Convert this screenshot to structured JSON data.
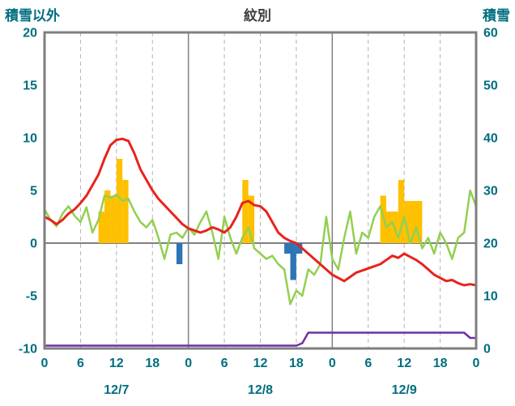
{
  "header": {
    "left_axis_title": "積雪以外",
    "title": "紋別",
    "right_axis_title": "積雪"
  },
  "colors": {
    "axis_text": "#006e7f",
    "title_text": "#404040",
    "frame": "#7f7f7f",
    "grid_major": "#7f7f7f",
    "grid_minor": "#b3b3b3",
    "zero_line": "#7f7f7f",
    "red": "#e8231c",
    "green": "#92d050",
    "orange": "#ffc000",
    "blue": "#2e75b6",
    "purple": "#7030a0",
    "background": "#ffffff"
  },
  "chart_data": {
    "type": "combo (line + bar)",
    "x_unit": "hour",
    "x_range": [
      0,
      72
    ],
    "left_axis": {
      "label": "積雪以外",
      "min": -10,
      "max": 20,
      "ticks": [
        20,
        15,
        10,
        5,
        0,
        -5,
        -10
      ]
    },
    "right_axis": {
      "label": "積雪",
      "min": 0,
      "max": 60,
      "ticks": [
        60,
        50,
        40,
        30,
        20,
        10,
        0
      ]
    },
    "x_ticks": [
      {
        "hour": 0,
        "label": "0"
      },
      {
        "hour": 6,
        "label": "6"
      },
      {
        "hour": 12,
        "label": "12"
      },
      {
        "hour": 18,
        "label": "18"
      },
      {
        "hour": 24,
        "label": "0"
      },
      {
        "hour": 30,
        "label": "6"
      },
      {
        "hour": 36,
        "label": "12"
      },
      {
        "hour": 42,
        "label": "18"
      },
      {
        "hour": 48,
        "label": "0"
      },
      {
        "hour": 54,
        "label": "6"
      },
      {
        "hour": 60,
        "label": "12"
      },
      {
        "hour": 66,
        "label": "18"
      },
      {
        "hour": 72,
        "label": "0"
      }
    ],
    "day_labels": [
      {
        "label": "12/7",
        "center_hour": 12
      },
      {
        "label": "12/8",
        "center_hour": 36
      },
      {
        "label": "12/9",
        "center_hour": 60
      }
    ],
    "day_boundaries": [
      24,
      48
    ],
    "minor_gridlines": [
      6,
      12,
      18,
      30,
      36,
      42,
      54,
      60,
      66
    ],
    "grid": "vertical only, zero line horizontal",
    "legend": "none shown",
    "series": [
      {
        "name": "orange-bars",
        "type": "bar",
        "axis": "left",
        "color": "#ffc000",
        "bars": [
          {
            "hour": 9,
            "value": 3
          },
          {
            "hour": 10,
            "value": 5
          },
          {
            "hour": 11,
            "value": 4.5
          },
          {
            "hour": 12,
            "value": 8
          },
          {
            "hour": 13,
            "value": 6
          },
          {
            "hour": 33,
            "value": 6
          },
          {
            "hour": 34,
            "value": 4.5
          },
          {
            "hour": 56,
            "value": 4.5
          },
          {
            "hour": 57,
            "value": 3
          },
          {
            "hour": 58,
            "value": 3
          },
          {
            "hour": 59,
            "value": 6
          },
          {
            "hour": 60,
            "value": 4
          },
          {
            "hour": 61,
            "value": 4
          },
          {
            "hour": 62,
            "value": 4
          }
        ]
      },
      {
        "name": "blue-bars",
        "type": "bar",
        "axis": "left",
        "color": "#2e75b6",
        "bars": [
          {
            "hour": 22,
            "value": -2
          },
          {
            "hour": 40,
            "value": -1
          },
          {
            "hour": 41,
            "value": -3.5
          },
          {
            "hour": 42,
            "value": -1
          }
        ]
      },
      {
        "name": "green-line",
        "type": "line",
        "axis": "left",
        "color": "#92d050",
        "width": 2.5,
        "values": [
          3.2,
          2.2,
          1.6,
          2.8,
          3.5,
          2.6,
          2,
          3.4,
          1,
          2.2,
          4.5,
          4.3,
          4.6,
          4,
          4.2,
          3,
          2,
          1.5,
          2.2,
          0.5,
          -1.5,
          0.8,
          1,
          0.5,
          1.5,
          0.8,
          2,
          3,
          1,
          -1.5,
          2.5,
          0.5,
          -1,
          0.5,
          1.5,
          -0.5,
          -1,
          -1.5,
          -1.2,
          -2,
          -2.5,
          -5.8,
          -4.5,
          -5,
          -2.5,
          -3,
          -2,
          2.5,
          -1.5,
          -2.5,
          0.5,
          3,
          -1,
          1,
          0.5,
          2.5,
          3.5,
          1.5,
          2,
          0.5,
          2.5,
          0,
          1.5,
          -0.5,
          0.5,
          -1,
          1,
          0,
          -1.5,
          0.5,
          1,
          5,
          3.5
        ]
      },
      {
        "name": "red-line",
        "type": "line",
        "axis": "left",
        "color": "#e8231c",
        "width": 3,
        "values": [
          2.5,
          2.2,
          1.8,
          2.2,
          2.8,
          3.2,
          3.8,
          4.5,
          5.5,
          6.5,
          8,
          9.3,
          9.8,
          9.9,
          9.7,
          8.5,
          7,
          6,
          5,
          4.2,
          3.6,
          3,
          2.4,
          1.8,
          1.4,
          1.2,
          1,
          1.2,
          1.5,
          1.3,
          1,
          1.5,
          2.5,
          3.8,
          4,
          3.6,
          3.5,
          3,
          2,
          1,
          0.5,
          0.2,
          0,
          -0.5,
          -1,
          -1.5,
          -2,
          -2.5,
          -3,
          -3.3,
          -3.6,
          -3.2,
          -2.8,
          -2.6,
          -2.4,
          -2.2,
          -2,
          -1.6,
          -1.2,
          -1.4,
          -1,
          -1.3,
          -1.6,
          -2,
          -2.5,
          -3,
          -3.3,
          -3.6,
          -3.5,
          -3.8,
          -4,
          -3.9,
          -4
        ]
      },
      {
        "name": "purple-line",
        "type": "line",
        "axis": "right",
        "color": "#7030a0",
        "width": 2.5,
        "values": [
          0,
          0,
          0,
          0,
          0,
          0,
          0,
          0,
          0,
          0,
          0,
          0,
          0,
          0,
          0,
          0,
          0,
          0,
          0,
          0,
          0,
          0,
          0,
          0,
          0,
          0,
          0,
          0,
          0,
          0,
          0,
          0,
          0,
          0,
          0,
          0,
          0,
          0,
          0,
          0,
          0,
          0,
          0,
          1,
          3,
          3,
          3,
          3,
          3,
          3,
          3,
          3,
          3,
          3,
          3,
          3,
          3,
          3,
          3,
          3,
          3,
          3,
          3,
          3,
          3,
          3,
          3,
          3,
          3,
          3,
          3,
          2,
          2
        ]
      }
    ]
  }
}
